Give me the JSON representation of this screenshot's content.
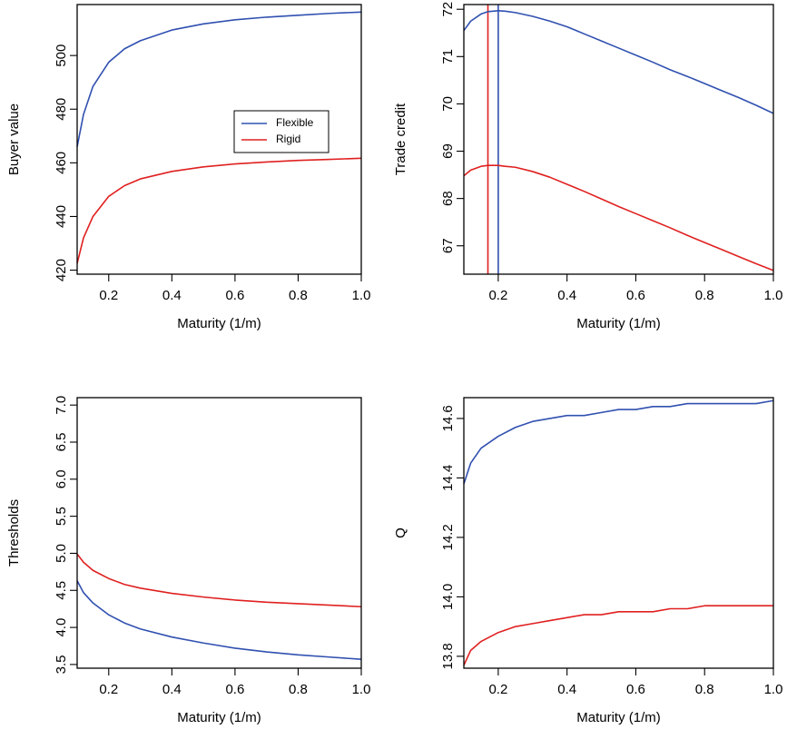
{
  "colors": {
    "flexible": "#3050b0",
    "rigid": "#e02020"
  },
  "legend": {
    "entries": [
      "Flexible",
      "Rigid"
    ]
  },
  "chart_data": [
    {
      "type": "line",
      "xlabel": "Maturity (1/m)",
      "ylabel": "Buyer value",
      "xlim": [
        0.1,
        1.0
      ],
      "ylim": [
        418.5,
        519
      ],
      "xticks": [
        0.2,
        0.4,
        0.6,
        0.8,
        1.0
      ],
      "yticks": [
        420,
        440,
        460,
        480,
        500
      ],
      "legend": "center-right",
      "series": [
        {
          "name": "Flexible",
          "color": "#3050b0",
          "x": [
            0.1,
            0.12,
            0.15,
            0.2,
            0.25,
            0.3,
            0.4,
            0.5,
            0.6,
            0.7,
            0.8,
            0.9,
            1.0
          ],
          "y": [
            466,
            478,
            488.5,
            497.5,
            502.5,
            505.5,
            509.5,
            511.8,
            513.3,
            514.3,
            515,
            515.7,
            516.2
          ]
        },
        {
          "name": "Rigid",
          "color": "#e02020",
          "x": [
            0.1,
            0.12,
            0.15,
            0.2,
            0.25,
            0.3,
            0.4,
            0.5,
            0.6,
            0.7,
            0.8,
            0.9,
            1.0
          ],
          "y": [
            422.5,
            432,
            440,
            447.5,
            451.5,
            454,
            456.8,
            458.5,
            459.6,
            460.3,
            460.9,
            461.3,
            461.7
          ]
        }
      ]
    },
    {
      "type": "line",
      "xlabel": "Maturity (1/m)",
      "ylabel": "Trade credit",
      "xlim": [
        0.1,
        1.0
      ],
      "ylim": [
        66.4,
        72.1
      ],
      "xticks": [
        0.2,
        0.4,
        0.6,
        0.8,
        1.0
      ],
      "yticks": [
        67,
        68,
        69,
        70,
        71,
        72
      ],
      "vlines": [
        {
          "x": 0.17,
          "color": "#e02020"
        },
        {
          "x": 0.2,
          "color": "#3050b0"
        }
      ],
      "series": [
        {
          "name": "Flexible",
          "color": "#3050b0",
          "x": [
            0.1,
            0.12,
            0.15,
            0.17,
            0.2,
            0.22,
            0.25,
            0.3,
            0.35,
            0.4,
            0.45,
            0.5,
            0.55,
            0.6,
            0.65,
            0.7,
            0.75,
            0.8,
            0.85,
            0.9,
            0.95,
            1.0
          ],
          "y": [
            71.55,
            71.75,
            71.9,
            71.95,
            71.97,
            71.96,
            71.93,
            71.85,
            71.75,
            71.63,
            71.48,
            71.33,
            71.18,
            71.03,
            70.88,
            70.72,
            70.58,
            70.43,
            70.28,
            70.13,
            69.97,
            69.8
          ]
        },
        {
          "name": "Rigid",
          "color": "#e02020",
          "x": [
            0.1,
            0.12,
            0.15,
            0.17,
            0.2,
            0.22,
            0.25,
            0.3,
            0.35,
            0.4,
            0.45,
            0.5,
            0.55,
            0.6,
            0.65,
            0.7,
            0.75,
            0.8,
            0.85,
            0.9,
            0.95,
            1.0
          ],
          "y": [
            68.48,
            68.6,
            68.68,
            68.7,
            68.7,
            68.68,
            68.66,
            68.57,
            68.45,
            68.3,
            68.15,
            67.99,
            67.83,
            67.68,
            67.53,
            67.38,
            67.22,
            67.07,
            66.92,
            66.77,
            66.62,
            66.48
          ]
        }
      ]
    },
    {
      "type": "line",
      "xlabel": "Maturity (1/m)",
      "ylabel": "Thresholds",
      "xlim": [
        0.1,
        1.0
      ],
      "ylim": [
        3.45,
        7.1
      ],
      "xticks": [
        0.2,
        0.4,
        0.6,
        0.8,
        1.0
      ],
      "yticks": [
        3.5,
        4.0,
        4.5,
        5.0,
        5.5,
        6.0,
        6.5,
        7.0
      ],
      "series": [
        {
          "name": "Flexible",
          "color": "#3050b0",
          "x": [
            0.1,
            0.12,
            0.15,
            0.2,
            0.25,
            0.3,
            0.4,
            0.5,
            0.6,
            0.7,
            0.8,
            0.9,
            1.0
          ],
          "y": [
            4.63,
            4.47,
            4.33,
            4.17,
            4.06,
            3.98,
            3.87,
            3.79,
            3.72,
            3.67,
            3.63,
            3.6,
            3.57
          ]
        },
        {
          "name": "Rigid",
          "color": "#e02020",
          "x": [
            0.1,
            0.12,
            0.15,
            0.2,
            0.25,
            0.3,
            0.4,
            0.5,
            0.6,
            0.7,
            0.8,
            0.9,
            1.0
          ],
          "y": [
            4.99,
            4.88,
            4.77,
            4.66,
            4.58,
            4.53,
            4.46,
            4.41,
            4.37,
            4.34,
            4.32,
            4.3,
            4.28
          ]
        }
      ]
    },
    {
      "type": "line",
      "xlabel": "Maturity (1/m)",
      "ylabel": "Q",
      "xlim": [
        0.1,
        1.0
      ],
      "ylim": [
        13.76,
        14.67
      ],
      "xticks": [
        0.2,
        0.4,
        0.6,
        0.8,
        1.0
      ],
      "yticks": [
        13.8,
        14.0,
        14.2,
        14.4,
        14.6
      ],
      "series": [
        {
          "name": "Flexible",
          "color": "#3050b0",
          "x": [
            0.1,
            0.12,
            0.15,
            0.2,
            0.25,
            0.3,
            0.35,
            0.4,
            0.45,
            0.5,
            0.55,
            0.6,
            0.65,
            0.7,
            0.75,
            0.8,
            0.85,
            0.9,
            0.95,
            1.0
          ],
          "y": [
            14.38,
            14.45,
            14.5,
            14.54,
            14.57,
            14.59,
            14.6,
            14.61,
            14.61,
            14.62,
            14.63,
            14.63,
            14.64,
            14.64,
            14.65,
            14.65,
            14.65,
            14.65,
            14.65,
            14.66
          ]
        },
        {
          "name": "Rigid",
          "color": "#e02020",
          "x": [
            0.1,
            0.12,
            0.15,
            0.2,
            0.25,
            0.3,
            0.35,
            0.4,
            0.45,
            0.5,
            0.55,
            0.6,
            0.65,
            0.7,
            0.75,
            0.8,
            0.85,
            0.9,
            0.95,
            1.0
          ],
          "y": [
            13.77,
            13.82,
            13.85,
            13.88,
            13.9,
            13.91,
            13.92,
            13.93,
            13.94,
            13.94,
            13.95,
            13.95,
            13.95,
            13.96,
            13.96,
            13.97,
            13.97,
            13.97,
            13.97,
            13.97
          ]
        }
      ]
    }
  ]
}
